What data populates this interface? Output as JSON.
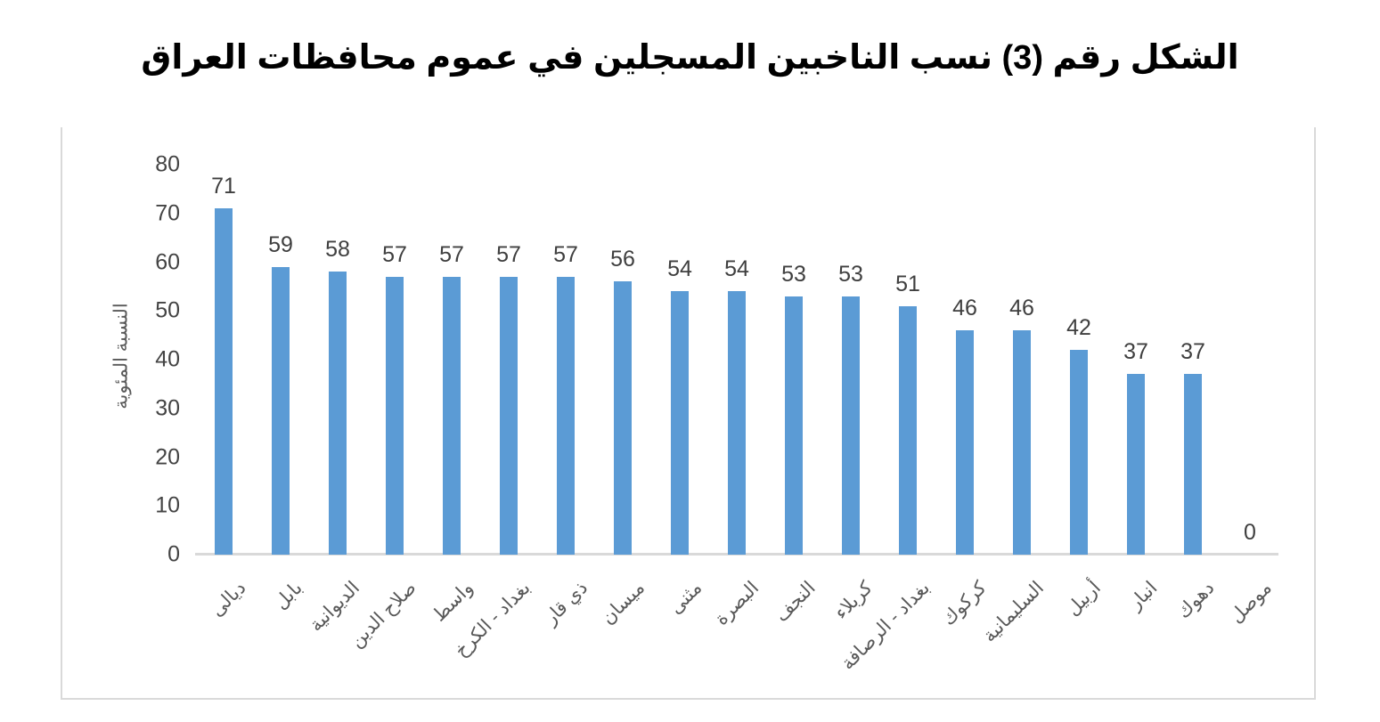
{
  "chart_data": {
    "type": "bar",
    "title": "الشكل رقم (3) نسب الناخبين المسجلين في عموم محافظات العراق",
    "xlabel": "",
    "ylabel": "النسبة المئوية",
    "categories": [
      "ديالى",
      "بابل",
      "الديوانية",
      "صلاح الدين",
      "واسط",
      "بغداد - الكرخ",
      "ذي قار",
      "ميسان",
      "مثنى",
      "البصرة",
      "النجف",
      "كربلاء",
      "بغداد - الرصافة",
      "كركوك",
      "السليمانية",
      "أربيل",
      "انبار",
      "دهوك",
      "موصل"
    ],
    "values": [
      71,
      59,
      58,
      57,
      57,
      57,
      57,
      56,
      54,
      54,
      53,
      53,
      51,
      46,
      46,
      42,
      37,
      37,
      0
    ],
    "ylim": [
      0,
      80
    ],
    "yticks": [
      0,
      10,
      20,
      30,
      40,
      50,
      60,
      70,
      80
    ],
    "data_labels": true,
    "grid": false,
    "legend": false,
    "text_direction": "rtl",
    "colors": {
      "bar": "#5b9bd5",
      "axis_line": "#d9d9d9",
      "chart_border": "#d9d9d9",
      "value_label": "#3f3f3f",
      "tick_label": "#444444",
      "category_label": "#595959",
      "title": "#000000",
      "background": "#ffffff"
    }
  }
}
